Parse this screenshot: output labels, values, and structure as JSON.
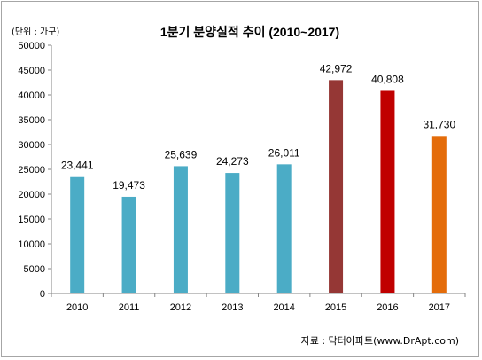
{
  "unit_label": "(단위 : 가구)",
  "source": "자료 : 닥터아파트(www.DrApt.com)",
  "chart_data": {
    "type": "bar",
    "title": "1분기 분양실적 추이 (2010~2017)",
    "xlabel": "",
    "ylabel": "",
    "categories": [
      "2010",
      "2011",
      "2012",
      "2013",
      "2014",
      "2015",
      "2016",
      "2017"
    ],
    "values": [
      23441,
      19473,
      25639,
      24273,
      26011,
      42972,
      40808,
      31730
    ],
    "value_labels": [
      "23,441",
      "19,473",
      "25,639",
      "24,273",
      "26,011",
      "42,972",
      "40,808",
      "31,730"
    ],
    "bar_colors": [
      "#4bacc6",
      "#4bacc6",
      "#4bacc6",
      "#4bacc6",
      "#4bacc6",
      "#953735",
      "#c00000",
      "#e46c0a"
    ],
    "ylim": [
      0,
      50000
    ],
    "yticks": [
      "0",
      "5000",
      "10000",
      "15000",
      "20000",
      "25000",
      "30000",
      "35000",
      "40000",
      "45000",
      "50000"
    ],
    "grid": false,
    "legend": "none"
  }
}
